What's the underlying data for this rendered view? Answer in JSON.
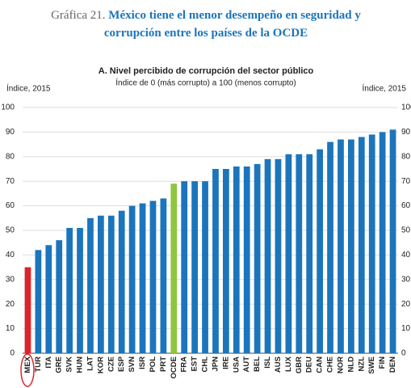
{
  "chart_data": {
    "type": "bar",
    "title_label": "Gráfica 21.",
    "title": "México tiene el menor desempeño en seguridad y corrupción entre los países de la OCDE",
    "subtitle": "A. Nivel percibido de corrupción del sector público",
    "subtitle2": "Índice de 0 (más corrupto) a 100 (menos corrupto)",
    "y_label": "Índice, 2015",
    "y2_label": "Índice, 2015",
    "categories": [
      "MEX",
      "TUR",
      "ITA",
      "GRE",
      "SVK",
      "HUN",
      "LAT",
      "KOR",
      "CZE",
      "ESP",
      "SVN",
      "ISR",
      "POL",
      "PRT",
      "OCDE",
      "FRA",
      "EST",
      "CHL",
      "JPN",
      "IRE",
      "USA",
      "AUT",
      "BEL",
      "ISL",
      "AUS",
      "LUX",
      "GBR",
      "DEU",
      "CAN",
      "CHE",
      "NOR",
      "NLD",
      "NZL",
      "SWE",
      "FIN",
      "DEN"
    ],
    "values": [
      35,
      42,
      44,
      46,
      51,
      51,
      55,
      56,
      56,
      58,
      60,
      61,
      62,
      63,
      69,
      70,
      70,
      70,
      75,
      75,
      76,
      76,
      77,
      79,
      79,
      81,
      81,
      81,
      83,
      86,
      87,
      87,
      88,
      89,
      90,
      91
    ],
    "color": "#1b75bc",
    "colors": [
      "#d9262b",
      "#1b75bc",
      "#1b75bc",
      "#1b75bc",
      "#1b75bc",
      "#1b75bc",
      "#1b75bc",
      "#1b75bc",
      "#1b75bc",
      "#1b75bc",
      "#1b75bc",
      "#1b75bc",
      "#1b75bc",
      "#1b75bc",
      "#8dc63f",
      "#1b75bc",
      "#1b75bc",
      "#1b75bc",
      "#1b75bc",
      "#1b75bc",
      "#1b75bc",
      "#1b75bc",
      "#1b75bc",
      "#1b75bc",
      "#1b75bc",
      "#1b75bc",
      "#1b75bc",
      "#1b75bc",
      "#1b75bc",
      "#1b75bc",
      "#1b75bc",
      "#1b75bc",
      "#1b75bc",
      "#1b75bc",
      "#1b75bc",
      "#1b75bc"
    ],
    "ylim": [
      0,
      100
    ],
    "yticks": [
      0,
      10,
      20,
      30,
      40,
      50,
      60,
      70,
      80,
      90,
      100
    ],
    "y2lim": [
      0,
      100
    ],
    "y2ticks": [
      0,
      10,
      20,
      30,
      40,
      50,
      60,
      70,
      80,
      90,
      100
    ],
    "grid": true
  }
}
